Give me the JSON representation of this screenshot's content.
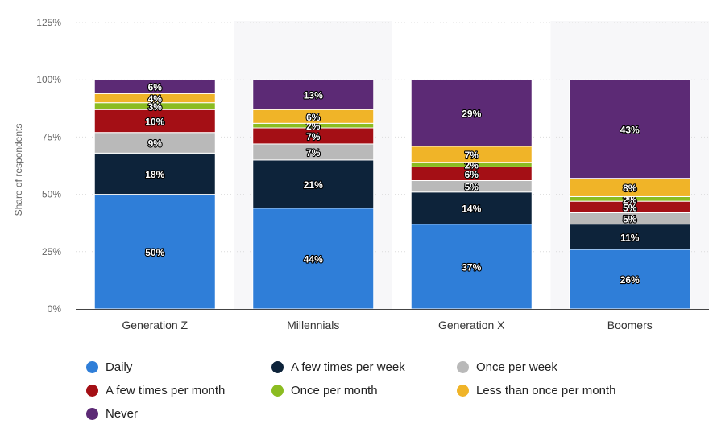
{
  "chart_data": {
    "type": "bar",
    "stacked": true,
    "categories": [
      "Generation Z",
      "Millennials",
      "Generation X",
      "Boomers"
    ],
    "series": [
      {
        "name": "Daily",
        "color": "#2f7ed8",
        "values": [
          50,
          44,
          37,
          26
        ]
      },
      {
        "name": "A few times per week",
        "color": "#0d233a",
        "values": [
          18,
          21,
          14,
          11
        ]
      },
      {
        "name": "Once per week",
        "color": "#b9b9b9",
        "values": [
          9,
          7,
          5,
          5
        ]
      },
      {
        "name": "A few times per month",
        "color": "#a40f15",
        "values": [
          10,
          7,
          6,
          5
        ]
      },
      {
        "name": "Once per month",
        "color": "#8bbc21",
        "values": [
          3,
          2,
          2,
          2
        ]
      },
      {
        "name": "Less than once per month",
        "color": "#f0b428",
        "values": [
          4,
          6,
          7,
          8
        ]
      },
      {
        "name": "Never",
        "color": "#5c2a75",
        "values": [
          6,
          13,
          29,
          43
        ]
      }
    ],
    "value_suffix": "%",
    "ylabel": "Share of respondents",
    "ylim": [
      0,
      125
    ],
    "yticks": [
      "0%",
      "25%",
      "50%",
      "75%",
      "100%",
      "125%"
    ],
    "ytick_values": [
      0,
      25,
      50,
      75,
      100,
      125
    ],
    "grid": true,
    "legend_position": "bottom"
  }
}
